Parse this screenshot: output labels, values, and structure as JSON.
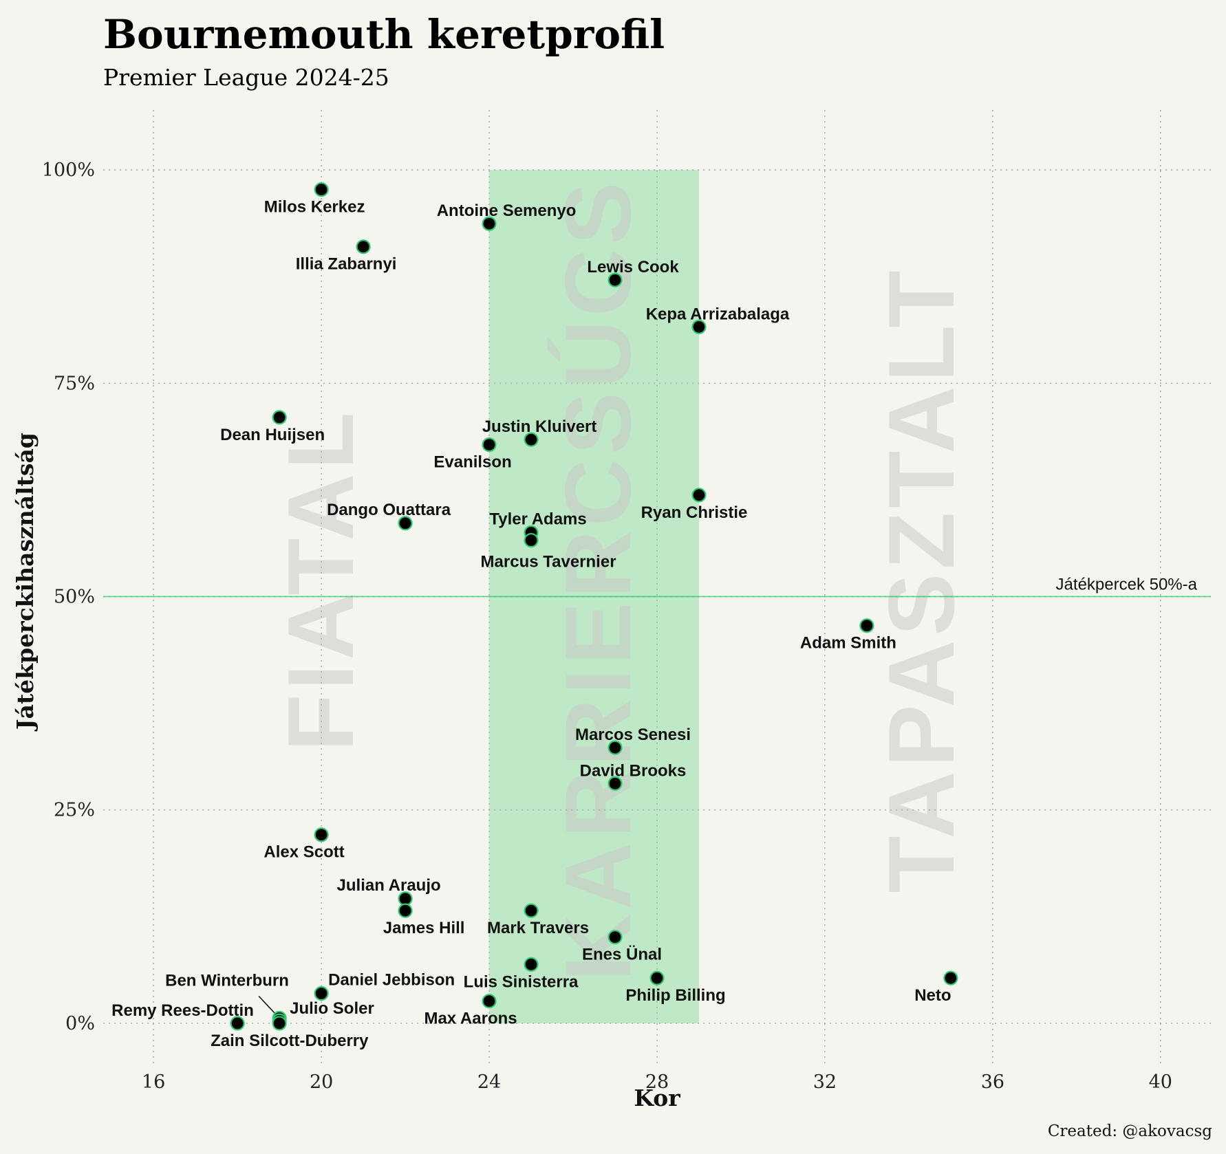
{
  "title": "Bournemouth keretprofil",
  "subtitle": "Premier League 2024-25",
  "caption": "Created: @akovacsg",
  "colors": {
    "background": "#f5f5f0",
    "accent_green": "#2ecc71",
    "prime_band": "#a8e2b4",
    "point_fill": "#000000",
    "point_stroke": "#2ecc71",
    "watermark": "#c8c8c8"
  },
  "chart_data": {
    "type": "scatter",
    "xlabel": "Kor",
    "ylabel": "Játékperckihasználtság",
    "xlim": [
      14.8,
      41.2
    ],
    "ylim": [
      -0.05,
      1.05
    ],
    "x_ticks": [
      16,
      20,
      24,
      28,
      32,
      36,
      40
    ],
    "x_tick_labels": [
      "16",
      "20",
      "24",
      "28",
      "32",
      "36",
      "40"
    ],
    "y_ticks": [
      0,
      0.25,
      0.5,
      0.75,
      1.0
    ],
    "y_tick_labels": [
      "0%",
      "25%",
      "50%",
      "75%",
      "100%"
    ],
    "grid": true,
    "prime_age_band": [
      24,
      29
    ],
    "reference_line": {
      "y": 0.5,
      "label": "Játékpercek 50%-a"
    },
    "zones": [
      "FIATAL",
      "KARRIERCSÚCS",
      "TAPASZTALT"
    ],
    "points": [
      {
        "name": "Milos Kerkez",
        "x": 20,
        "y": 0.977
      },
      {
        "name": "Antoine Semenyo",
        "x": 24,
        "y": 0.937
      },
      {
        "name": "Illia Zabarnyi",
        "x": 21,
        "y": 0.91
      },
      {
        "name": "Lewis Cook",
        "x": 27,
        "y": 0.871
      },
      {
        "name": "Kepa Arrizabalaga",
        "x": 29,
        "y": 0.816
      },
      {
        "name": "Dean Huijsen",
        "x": 19,
        "y": 0.71
      },
      {
        "name": "Justin Kluivert",
        "x": 25,
        "y": 0.684
      },
      {
        "name": "Evanilson",
        "x": 24,
        "y": 0.678
      },
      {
        "name": "Ryan Christie",
        "x": 29,
        "y": 0.619
      },
      {
        "name": "Dango Ouattara",
        "x": 22,
        "y": 0.586
      },
      {
        "name": "Tyler Adams",
        "x": 25,
        "y": 0.575
      },
      {
        "name": "Marcus Tavernier",
        "x": 25,
        "y": 0.566
      },
      {
        "name": "Adam Smith",
        "x": 33,
        "y": 0.466
      },
      {
        "name": "Marcos Senesi",
        "x": 27,
        "y": 0.323
      },
      {
        "name": "David Brooks",
        "x": 27,
        "y": 0.281
      },
      {
        "name": "Alex Scott",
        "x": 20,
        "y": 0.221
      },
      {
        "name": "Julian Araujo",
        "x": 22,
        "y": 0.146
      },
      {
        "name": "James Hill",
        "x": 22,
        "y": 0.132
      },
      {
        "name": "Mark Travers",
        "x": 25,
        "y": 0.132
      },
      {
        "name": "Enes Ünal",
        "x": 27,
        "y": 0.101
      },
      {
        "name": "Luis Sinisterra",
        "x": 25,
        "y": 0.069
      },
      {
        "name": "Philip Billing",
        "x": 28,
        "y": 0.053
      },
      {
        "name": "Neto",
        "x": 35,
        "y": 0.053
      },
      {
        "name": "Daniel Jebbison",
        "x": 20,
        "y": 0.035
      },
      {
        "name": "Max Aarons",
        "x": 24,
        "y": 0.026
      },
      {
        "name": "Ben Winterburn",
        "x": 19,
        "y": 0.006
      },
      {
        "name": "Julio Soler",
        "x": 19,
        "y": 0.003
      },
      {
        "name": "Remy Rees-Dottin",
        "x": 18,
        "y": 0.0
      },
      {
        "name": "Zain Silcott-Duberry",
        "x": 19,
        "y": 0.0
      }
    ]
  }
}
